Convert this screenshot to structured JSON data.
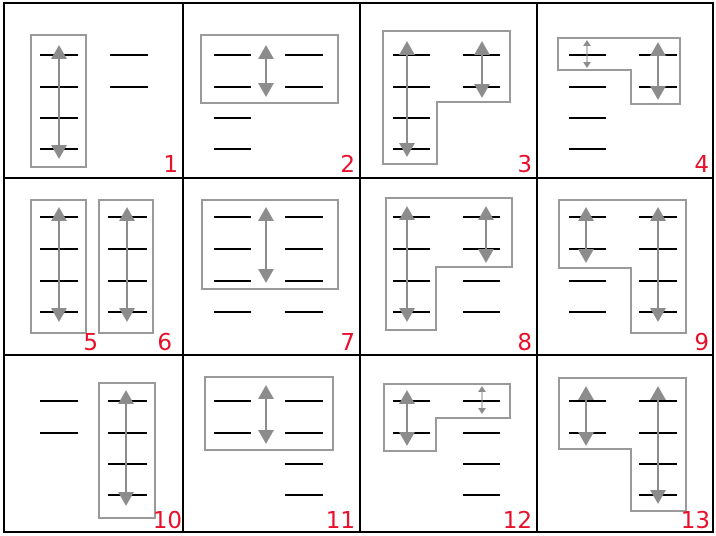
{
  "colors": {
    "grid": "#000000",
    "bar": "#000000",
    "outline": "#9a9a9a",
    "arrow": "#8c8c8c",
    "label": "#e8102a"
  },
  "labels": [
    "1",
    "2",
    "3",
    "4",
    "5",
    "6",
    "7",
    "8",
    "9",
    "10",
    "11",
    "12",
    "13"
  ]
}
